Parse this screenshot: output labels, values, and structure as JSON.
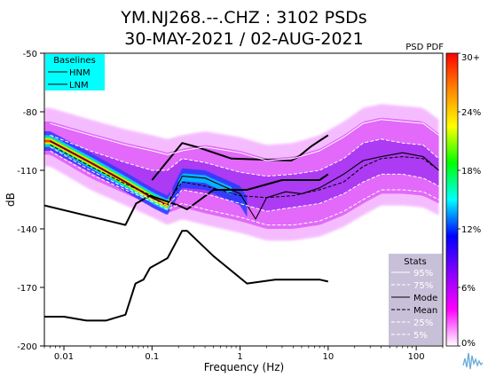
{
  "chart_data": {
    "type": "heatmap",
    "title": "YM.NJ268.--.CHZ : 3102 PSDs",
    "subtitle": "30-MAY-2021 / 02-AUG-2021",
    "xlabel": "Frequency (Hz)",
    "ylabel": "dB",
    "x_scale": "log",
    "xlim": [
      0.006,
      200
    ],
    "ylim": [
      -200,
      -50
    ],
    "x_ticks": [
      {
        "value": 0.01,
        "label": "0.01"
      },
      {
        "value": 0.1,
        "label": "0.1"
      },
      {
        "value": 1,
        "label": "1"
      },
      {
        "value": 10,
        "label": "10"
      },
      {
        "value": 100,
        "label": "100"
      }
    ],
    "y_ticks": [
      {
        "value": -50,
        "label": "-50"
      },
      {
        "value": -80,
        "label": "-80"
      },
      {
        "value": -110,
        "label": "-110"
      },
      {
        "value": -140,
        "label": "-140"
      },
      {
        "value": -170,
        "label": "-170"
      },
      {
        "value": -200,
        "label": "-200"
      }
    ],
    "colorbar": {
      "title": "PSD PDF",
      "ticks": [
        "30+",
        "24%",
        "18%",
        "12%",
        "6%",
        "0%"
      ],
      "stops": [
        "#ff0000",
        "#ff8800",
        "#ffff00",
        "#00ff00",
        "#00ffff",
        "#0000ff",
        "#8800ff",
        "#ff00ff",
        "#ffffff"
      ]
    },
    "baselines_legend": {
      "title": "Baselines",
      "items": [
        "HNM",
        "LNM"
      ],
      "background": "#00ffff"
    },
    "stats_legend": {
      "title": "Stats",
      "items": [
        "95%",
        "75%",
        "Mode",
        "Mean",
        "25%",
        "5%"
      ],
      "background": "#c8c0d8"
    },
    "colors": {
      "pdf_low": "#ff00ff",
      "pdf_mid": "#0000ff",
      "pdf_high": "#ff0000",
      "percentile": "#ffffff",
      "mode_mean": "#000000"
    },
    "series": [
      {
        "name": "HNM",
        "x": [
          0.1,
          0.22,
          0.32,
          0.8,
          3.8,
          4.6,
          6.3,
          7.9,
          10
        ],
        "y": [
          -115,
          -96,
          -98,
          -104,
          -105,
          -103,
          -98,
          -95,
          -92
        ]
      },
      {
        "name": "LNM",
        "x": [
          0.006,
          0.05,
          0.066,
          0.095,
          0.2,
          0.25,
          0.5,
          1.2,
          3,
          8,
          10
        ],
        "y": [
          -128,
          -138,
          -127,
          -123,
          -128,
          -130,
          -120,
          -120,
          -115,
          -115,
          -112
        ]
      },
      {
        "name": "NLNM",
        "x": [
          0.006,
          0.01,
          0.018,
          0.03,
          0.05,
          0.065,
          0.08,
          0.095,
          0.15,
          0.22,
          0.25,
          0.5,
          1.2,
          2.5,
          8,
          10
        ],
        "y": [
          -185,
          -185,
          -187,
          -187,
          -184,
          -168,
          -166,
          -160,
          -155,
          -141,
          -141,
          -154,
          -168,
          -166,
          -166,
          -167
        ]
      },
      {
        "name": "95%",
        "x": [
          0.007,
          0.02,
          0.05,
          0.1,
          0.15,
          0.22,
          0.4,
          1,
          2,
          4,
          8,
          15,
          25,
          40,
          70,
          120,
          180
        ],
        "y": [
          -86,
          -92,
          -97,
          -100,
          -102,
          -100,
          -98,
          -101,
          -105,
          -104,
          -100,
          -93,
          -86,
          -84,
          -85,
          -86,
          -92
        ]
      },
      {
        "name": "75%",
        "x": [
          0.007,
          0.02,
          0.05,
          0.1,
          0.15,
          0.22,
          0.4,
          1,
          2,
          4,
          8,
          15,
          25,
          40,
          70,
          120,
          180
        ],
        "y": [
          -92,
          -100,
          -106,
          -110,
          -110,
          -104,
          -106,
          -111,
          -113,
          -112,
          -110,
          -104,
          -96,
          -94,
          -96,
          -97,
          -104
        ]
      },
      {
        "name": "Mode",
        "x": [
          0.007,
          0.02,
          0.05,
          0.1,
          0.15,
          0.22,
          0.4,
          1,
          1.5,
          2,
          3.3,
          5,
          8,
          15,
          25,
          40,
          70,
          120,
          180
        ],
        "y": [
          -95,
          -106,
          -116,
          -124,
          -128,
          -113,
          -114,
          -122,
          -135,
          -124,
          -121,
          -122,
          -119,
          -112,
          -105,
          -103,
          -101,
          -103,
          -110
        ]
      },
      {
        "name": "Mean",
        "x": [
          0.007,
          0.02,
          0.05,
          0.1,
          0.15,
          0.22,
          0.4,
          1,
          2,
          4,
          8,
          15,
          25,
          40,
          70,
          120,
          180
        ],
        "y": [
          -97,
          -108,
          -117,
          -123,
          -126,
          -116,
          -118,
          -123,
          -124,
          -123,
          -120,
          -116,
          -108,
          -104,
          -103,
          -104,
          -110
        ]
      },
      {
        "name": "25%",
        "x": [
          0.007,
          0.02,
          0.05,
          0.1,
          0.15,
          0.22,
          0.4,
          1,
          2,
          4,
          8,
          15,
          25,
          40,
          70,
          120,
          180
        ],
        "y": [
          -98,
          -110,
          -119,
          -125,
          -128,
          -120,
          -122,
          -127,
          -131,
          -129,
          -127,
          -122,
          -116,
          -112,
          -112,
          -114,
          -118
        ]
      },
      {
        "name": "5%",
        "x": [
          0.007,
          0.02,
          0.05,
          0.1,
          0.15,
          0.22,
          0.4,
          1,
          2,
          4,
          8,
          15,
          25,
          40,
          70,
          120,
          180
        ],
        "y": [
          -100,
          -112,
          -120,
          -126,
          -130,
          -127,
          -130,
          -134,
          -138,
          -138,
          -136,
          -131,
          -125,
          -120,
          -120,
          -121,
          -125
        ]
      }
    ]
  }
}
